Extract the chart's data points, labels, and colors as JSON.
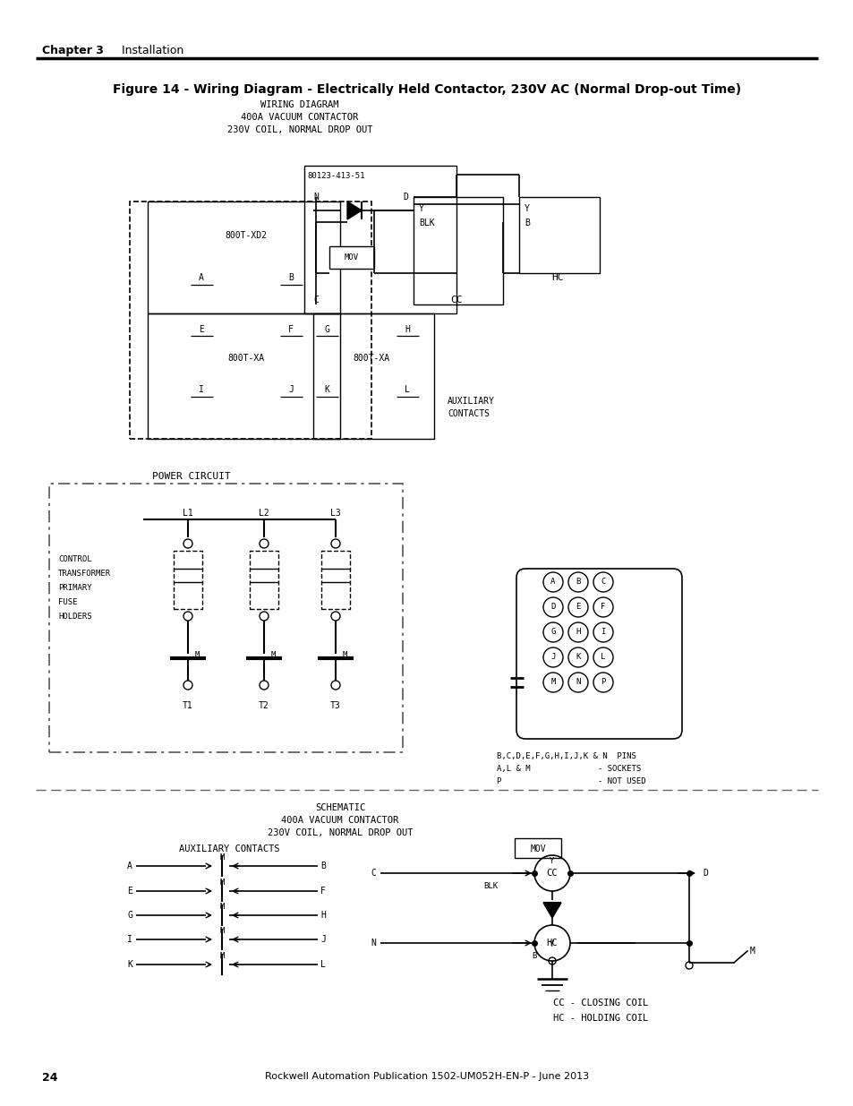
{
  "page_number": "24",
  "footer_text": "Rockwell Automation Publication 1502-UM052H-EN-P - June 2013",
  "header_chapter": "Chapter 3",
  "header_section": "Installation",
  "figure_title": "Figure 14 - Wiring Diagram - Electrically Held Contactor, 230V AC (Normal Drop-out Time)",
  "wiring_title_lines": [
    "WIRING DIAGRAM",
    "400A VACUUM CONTACTOR",
    "230V COIL, NORMAL DROP OUT"
  ],
  "schematic_title_lines": [
    "SCHEMATIC",
    "400A VACUUM CONTACTOR",
    "230V COIL, NORMAL DROP OUT"
  ],
  "bg_color": "#ffffff",
  "line_color": "#000000"
}
